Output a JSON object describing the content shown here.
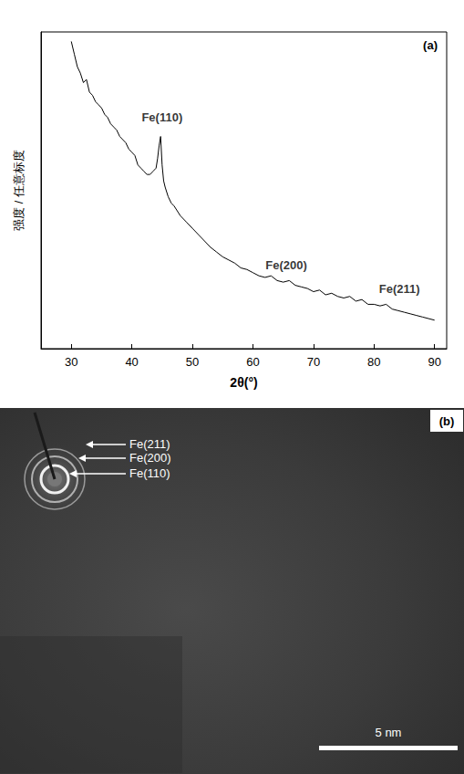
{
  "chart_data": {
    "type": "line",
    "title": "(a)",
    "x_label": "2θ(°)",
    "y_label": "强度 / 任意标度",
    "x": [
      30,
      30.5,
      31,
      31.5,
      32,
      32.5,
      33,
      33.5,
      34,
      34.5,
      35,
      35.5,
      36,
      36.5,
      37,
      37.5,
      38,
      38.5,
      39,
      39.5,
      40,
      40.5,
      41,
      41.5,
      42,
      42.5,
      43,
      43.5,
      44,
      44.25,
      44.5,
      44.75,
      45,
      45.25,
      45.5,
      46,
      46.5,
      47,
      48,
      49,
      50,
      51,
      52,
      53,
      54,
      55,
      56,
      57,
      58,
      59,
      60,
      61,
      62,
      63,
      64,
      65,
      66,
      67,
      68,
      69,
      70,
      71,
      72,
      73,
      74,
      75,
      76,
      77,
      78,
      79,
      80,
      81,
      82,
      83,
      84,
      85,
      86,
      87,
      88,
      89,
      90
    ],
    "values": [
      97,
      93,
      89,
      87,
      84,
      85,
      81,
      80,
      78,
      77,
      76,
      74,
      73,
      71,
      70,
      69,
      67,
      66,
      65,
      63,
      62,
      61,
      58,
      57,
      56,
      55,
      55,
      56,
      57,
      60,
      64,
      67,
      58,
      53,
      51,
      48,
      46,
      45,
      42,
      40,
      38,
      36,
      34,
      32,
      30.5,
      29,
      28,
      27,
      25.5,
      25,
      24,
      23,
      22.5,
      23,
      21.5,
      21,
      21.5,
      20,
      19.5,
      19,
      18,
      18.5,
      17,
      17.5,
      16.5,
      16,
      16.5,
      15,
      15.5,
      14,
      14,
      13.5,
      14,
      12.5,
      12,
      11.5,
      11,
      10.5,
      10,
      9.5,
      9
    ],
    "color": "#000000",
    "xlim": [
      25,
      92
    ],
    "xticks": [
      30,
      40,
      50,
      60,
      70,
      80,
      90
    ],
    "ylim": [
      0,
      100
    ],
    "yticks": [],
    "tick_labels": "x",
    "grid": false,
    "annotations": [
      {
        "text": "Fe(110)",
        "x": 45,
        "y": 73
      },
      {
        "text": "Fe(200)",
        "x": 65.5,
        "y": 26.5
      },
      {
        "text": "Fe(211)",
        "x": 84.2,
        "y": 19
      }
    ]
  },
  "image_panel": {
    "label": "(b)",
    "ring_labels": [
      "Fe(211)",
      "Fe(200)",
      "Fe(110)"
    ],
    "scale_bar": "5 nm"
  }
}
